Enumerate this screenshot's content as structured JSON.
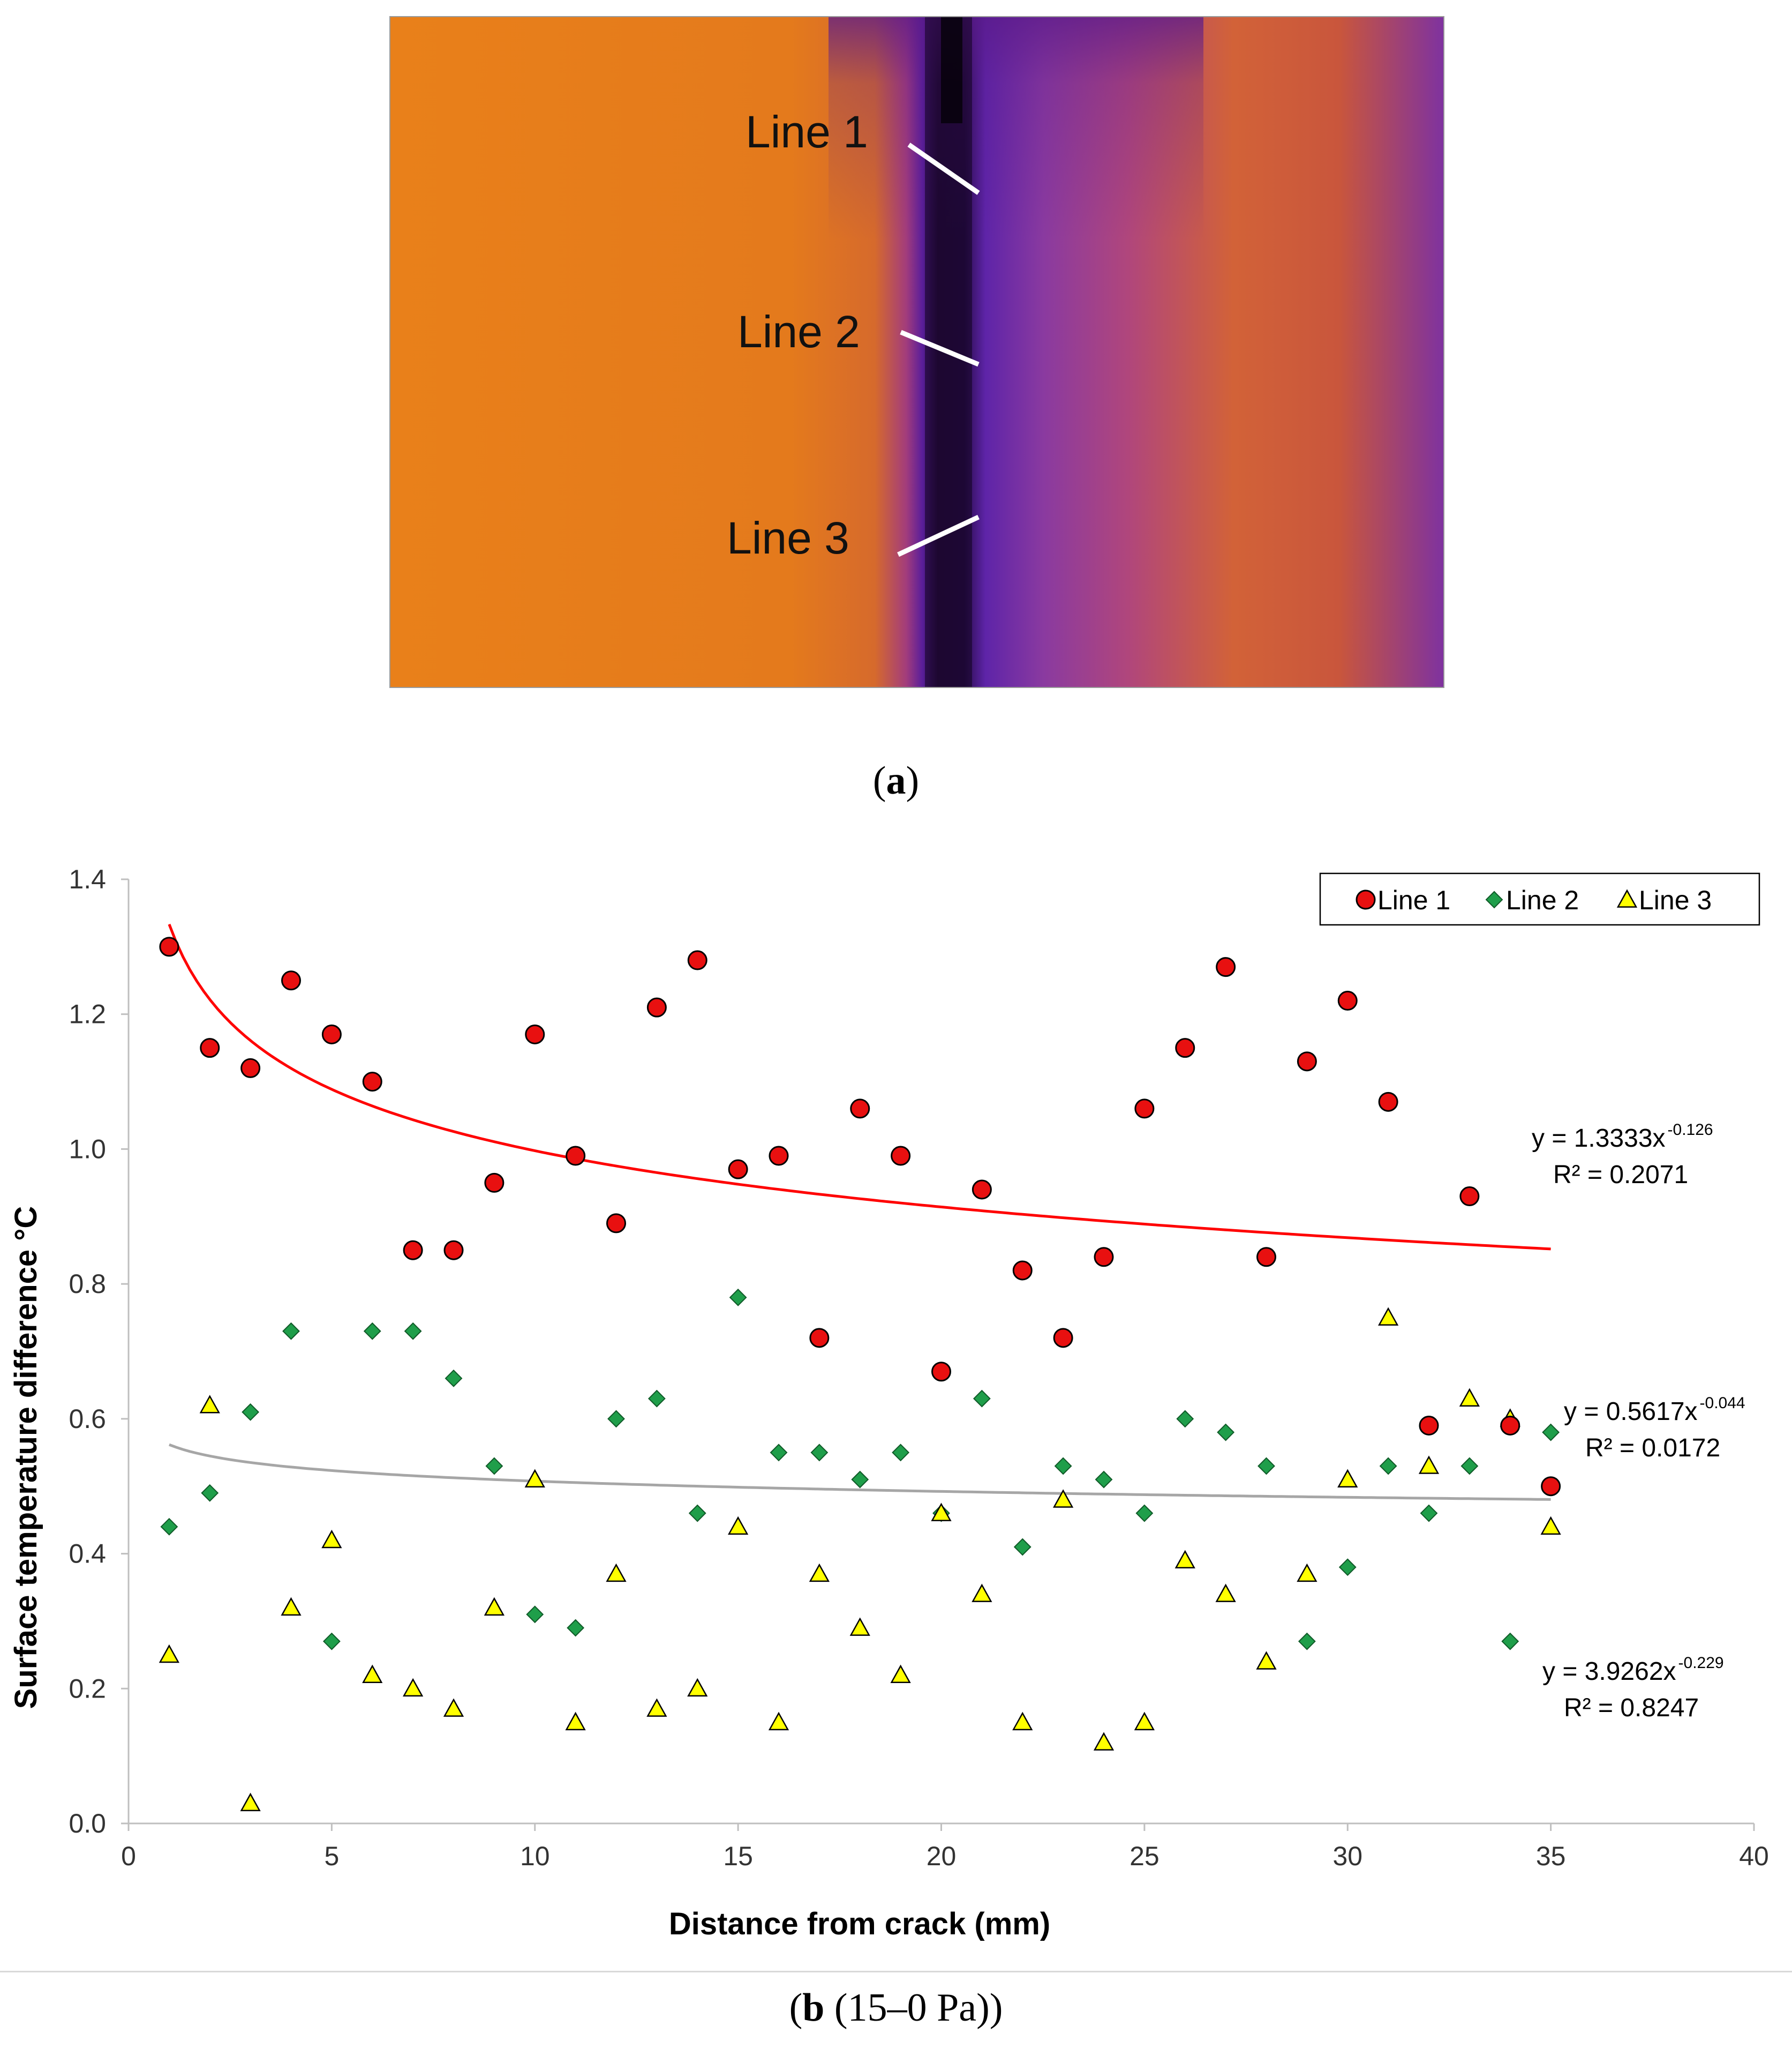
{
  "panel_a": {
    "line_labels": [
      "Line 1",
      "Line 2",
      "Line 3"
    ],
    "caption_letter": "a",
    "colors": {
      "hot": "#e07a18",
      "mid": "#b44470",
      "cool": "#7a2aa6",
      "cold": "#120420"
    }
  },
  "panel_b": {
    "caption_letter": "b",
    "caption_rest": " (15–0 Pa)"
  },
  "chart_data": {
    "type": "scatter",
    "title": "",
    "xlabel": "Distance from crack (mm)",
    "ylabel": "Surface temperature difference °C",
    "xlim": [
      0,
      40
    ],
    "ylim": [
      0,
      1.4
    ],
    "xticks": [
      0,
      5,
      10,
      15,
      20,
      25,
      30,
      35,
      40
    ],
    "yticks": [
      0.0,
      0.2,
      0.4,
      0.6,
      0.8,
      1.0,
      1.2,
      1.4
    ],
    "grid": false,
    "legend": "top-right",
    "series": [
      {
        "name": "Line 1",
        "marker": "circle",
        "color": "#e81010",
        "trend_color": "#ff0000",
        "x": [
          1,
          2,
          3,
          4,
          5,
          6,
          7,
          8,
          9,
          10,
          11,
          12,
          13,
          14,
          15,
          16,
          17,
          18,
          19,
          20,
          21,
          22,
          23,
          24,
          25,
          26,
          27,
          28,
          29,
          30,
          31,
          32,
          33,
          34,
          35
        ],
        "y": [
          1.3,
          1.15,
          1.12,
          1.25,
          1.17,
          1.1,
          0.85,
          0.85,
          0.95,
          1.17,
          0.99,
          0.89,
          1.21,
          1.28,
          0.97,
          0.99,
          0.72,
          1.06,
          0.99,
          0.67,
          0.94,
          0.82,
          0.72,
          0.84,
          1.06,
          1.15,
          1.27,
          0.84,
          1.13,
          1.22,
          1.07,
          0.59,
          0.93,
          0.59,
          0.5
        ],
        "trend": {
          "a": 1.3333,
          "b": -0.126,
          "equation": "y = 1.3333x",
          "exponent": "-0.126",
          "r2": "R² = 0.2071"
        }
      },
      {
        "name": "Line 2",
        "marker": "diamond",
        "color": "#1f9e4a",
        "trend_color": "#a6a6a6",
        "x": [
          1,
          2,
          3,
          4,
          5,
          6,
          7,
          8,
          9,
          10,
          11,
          12,
          13,
          14,
          15,
          16,
          17,
          18,
          19,
          20,
          21,
          22,
          23,
          24,
          25,
          26,
          27,
          28,
          29,
          30,
          31,
          32,
          33,
          34,
          35
        ],
        "y": [
          0.44,
          0.49,
          0.61,
          0.73,
          0.27,
          0.73,
          0.73,
          0.66,
          0.53,
          0.31,
          0.29,
          0.6,
          0.63,
          0.46,
          0.78,
          0.55,
          0.55,
          0.51,
          0.55,
          0.46,
          0.63,
          0.41,
          0.53,
          0.51,
          0.46,
          0.6,
          0.58,
          0.53,
          0.27,
          0.38,
          0.53,
          0.46,
          0.53,
          0.27,
          0.58
        ],
        "trend": {
          "a": 0.5617,
          "b": -0.044,
          "equation": "y = 0.5617x",
          "exponent": "-0.044",
          "r2": "R² = 0.0172"
        }
      },
      {
        "name": "Line 3",
        "marker": "triangle",
        "color": "#ffff00",
        "trend_color": "#ffc000",
        "x": [
          1,
          2,
          3,
          4,
          5,
          6,
          7,
          8,
          9,
          10,
          11,
          12,
          13,
          14,
          15,
          16,
          17,
          18,
          19,
          20,
          21,
          22,
          23,
          24,
          25,
          26,
          27,
          28,
          29,
          30,
          31,
          32,
          33,
          34,
          35
        ],
        "y": [
          0.25,
          0.62,
          0.03,
          0.32,
          0.42,
          0.22,
          0.2,
          0.17,
          0.32,
          0.51,
          0.15,
          0.37,
          0.17,
          0.2,
          0.44,
          0.15,
          0.37,
          0.29,
          0.22,
          0.46,
          0.34,
          0.15,
          0.48,
          0.12,
          0.15,
          0.39,
          0.34,
          0.24,
          0.37,
          0.51,
          0.75,
          0.53,
          0.63,
          0.6,
          0.44
        ],
        "trend": {
          "a": 3.9262,
          "b": -0.229,
          "equation": "y = 3.9262x",
          "exponent": "-0.229",
          "r2": "R² = 0.8247"
        }
      }
    ]
  }
}
